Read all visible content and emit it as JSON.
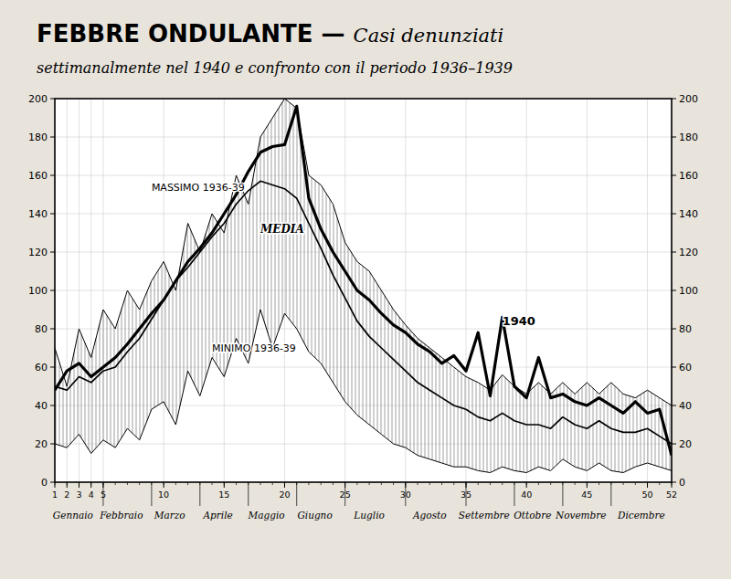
{
  "chart_data": {
    "type": "line",
    "title": [
      "FEBBRE ONDULANTE",
      " — ",
      "Casi denunziati"
    ],
    "subtitle": "settimanalmente nel 1940 e confronto con il periodo 1936–1939",
    "x": [
      1,
      2,
      3,
      4,
      5,
      6,
      7,
      8,
      9,
      10,
      11,
      12,
      13,
      14,
      15,
      16,
      17,
      18,
      19,
      20,
      21,
      22,
      23,
      24,
      25,
      26,
      27,
      28,
      29,
      30,
      31,
      32,
      33,
      34,
      35,
      36,
      37,
      38,
      39,
      40,
      41,
      42,
      43,
      44,
      45,
      46,
      47,
      48,
      49,
      50,
      51,
      52
    ],
    "xlim": [
      1,
      52
    ],
    "xticks": [
      1,
      2,
      3,
      4,
      5,
      10,
      15,
      20,
      25,
      30,
      35,
      40,
      45,
      50,
      52
    ],
    "ylim": [
      0,
      200
    ],
    "yticks": [
      0,
      20,
      40,
      60,
      80,
      100,
      120,
      140,
      160,
      180,
      200
    ],
    "y2lim": [
      0,
      200
    ],
    "y2ticks": [
      0,
      20,
      40,
      60,
      80,
      100,
      120,
      140,
      160,
      180,
      200
    ],
    "grid": true,
    "x_groups": [
      {
        "label": "Gennaio",
        "start": 1,
        "end": 4
      },
      {
        "label": "Febbraio",
        "start": 5,
        "end": 8
      },
      {
        "label": "Marzo",
        "start": 9,
        "end": 12
      },
      {
        "label": "Aprile",
        "start": 13,
        "end": 16
      },
      {
        "label": "Maggio",
        "start": 17,
        "end": 20
      },
      {
        "label": "Giugno",
        "start": 21,
        "end": 24
      },
      {
        "label": "Luglio",
        "start": 25,
        "end": 29
      },
      {
        "label": "Agosto",
        "start": 30,
        "end": 34
      },
      {
        "label": "Settembre",
        "start": 35,
        "end": 38
      },
      {
        "label": "Ottobre",
        "start": 39,
        "end": 42
      },
      {
        "label": "Novembre",
        "start": 43,
        "end": 46
      },
      {
        "label": "Dicembre",
        "start": 47,
        "end": 52
      }
    ],
    "series": [
      {
        "color": "#000000",
        "values": [
          70,
          50,
          80,
          65,
          90,
          80,
          100,
          90,
          105,
          115,
          100,
          135,
          120,
          140,
          130,
          160,
          145,
          180,
          190,
          200,
          195,
          160,
          155,
          145,
          125,
          115,
          110,
          100,
          90,
          82,
          75,
          70,
          65,
          60,
          55,
          52,
          48,
          56,
          50,
          46,
          52,
          46,
          52,
          46,
          52,
          46,
          52,
          46,
          44,
          48,
          44,
          40
        ]
      },
      {
        "color": "#000000",
        "values": [
          20,
          18,
          25,
          15,
          22,
          18,
          28,
          22,
          38,
          42,
          30,
          58,
          45,
          65,
          55,
          75,
          62,
          90,
          70,
          88,
          80,
          68,
          62,
          52,
          42,
          35,
          30,
          25,
          20,
          18,
          14,
          12,
          10,
          8,
          8,
          6,
          5,
          8,
          6,
          5,
          8,
          6,
          12,
          8,
          6,
          10,
          6,
          5,
          8,
          10,
          8,
          6
        ]
      },
      {
        "color": "#000000",
        "values": [
          50,
          48,
          55,
          52,
          58,
          60,
          68,
          75,
          85,
          95,
          105,
          112,
          120,
          128,
          135,
          145,
          152,
          157,
          155,
          153,
          148,
          135,
          122,
          108,
          96,
          84,
          76,
          70,
          64,
          58,
          52,
          48,
          44,
          40,
          38,
          34,
          32,
          36,
          32,
          30,
          30,
          28,
          34,
          30,
          28,
          32,
          28,
          26,
          26,
          28,
          24,
          20
        ]
      },
      {
        "color": "#000000",
        "values": [
          48,
          58,
          62,
          55,
          60,
          65,
          72,
          80,
          88,
          95,
          105,
          115,
          122,
          130,
          140,
          150,
          162,
          172,
          175,
          176,
          196,
          148,
          132,
          120,
          110,
          100,
          95,
          88,
          82,
          78,
          72,
          68,
          62,
          66,
          58,
          78,
          45,
          86,
          50,
          44,
          65,
          44,
          46,
          42,
          40,
          44,
          40,
          36,
          42,
          36,
          38,
          14
        ]
      }
    ],
    "annotations": [
      {
        "text": "MASSIMO 1936-39",
        "x": 9,
        "y": 152
      },
      {
        "text": "MINIMO 1936-39",
        "x": 14,
        "y": 68
      },
      {
        "text": "MEDIA",
        "x": 18,
        "y": 130
      },
      {
        "text": "1940",
        "x": 38,
        "y": 82
      }
    ]
  }
}
